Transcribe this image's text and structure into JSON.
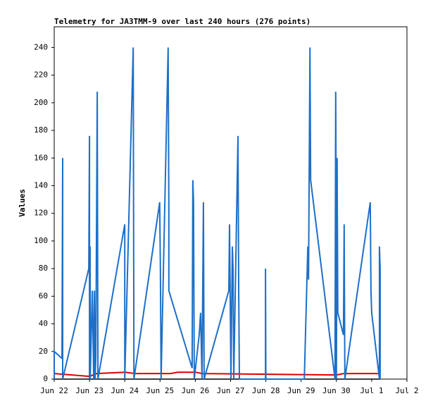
{
  "chart_data": {
    "type": "line",
    "title": "Telemetry for JA3TMM-9 over last 240 hours (276 points)",
    "y_label": "Values",
    "ylim": [
      0,
      255
    ],
    "yticks": [
      0,
      20,
      40,
      60,
      80,
      100,
      120,
      140,
      160,
      180,
      200,
      220,
      240
    ],
    "xlim": [
      0,
      10
    ],
    "xticks": [
      {
        "value": 0,
        "label": "Jun 22"
      },
      {
        "value": 1,
        "label": "Jun 23"
      },
      {
        "value": 2,
        "label": "Jun 24"
      },
      {
        "value": 3,
        "label": "Jun 25"
      },
      {
        "value": 4,
        "label": "Jun 26"
      },
      {
        "value": 5,
        "label": "Jun 27"
      },
      {
        "value": 6,
        "label": "Jun 28"
      },
      {
        "value": 7,
        "label": "Jun 29"
      },
      {
        "value": 8,
        "label": "Jun 30"
      },
      {
        "value": 9,
        "label": "Jul 1"
      },
      {
        "value": 10,
        "label": "Jul 2"
      }
    ],
    "grid": false,
    "series": [
      {
        "color": "#000000",
        "x": [
          0,
          9.24
        ],
        "values": [
          0,
          0
        ]
      },
      {
        "color": "#e00000",
        "x": [
          0,
          0.5,
          1,
          1.2,
          2,
          2.3,
          3,
          3.3,
          3.5,
          4,
          4.2,
          8,
          8.2,
          9.24
        ],
        "values": [
          4,
          3,
          2,
          4,
          5,
          4,
          4,
          4,
          5,
          5,
          4,
          3,
          4,
          4
        ]
      },
      {
        "color": "#1e6fc8",
        "x": [
          0,
          0,
          0.22,
          0.24,
          0.24,
          0.98,
          1.0,
          1.0,
          1.02,
          1.02,
          1.08,
          1.12,
          1.14,
          1.16,
          1.18,
          1.22,
          1.24,
          2.0,
          2.0,
          2.24,
          2.26,
          2.99,
          3.01,
          3.03,
          3.23,
          3.25,
          3.25,
          3.91,
          3.93,
          3.95,
          3.97,
          4.11,
          4.15,
          4.19,
          4.23,
          4.25,
          4.95,
          4.97,
          5.01,
          5.05,
          5.07,
          5.09,
          5.21,
          5.23,
          5.25,
          5.99,
          5.99,
          6.0,
          7.09,
          7.19,
          7.21,
          7.25,
          7.27,
          7.96,
          7.98,
          8.0,
          8.0,
          8.02,
          8.04,
          8.2,
          8.22,
          8.24,
          8.96,
          8.98,
          9.0,
          9.22,
          9.22,
          9.24,
          9.24
        ],
        "values": [
          0,
          20,
          15,
          160,
          0,
          80,
          176,
          0,
          96,
          0,
          64,
          0,
          64,
          0,
          16,
          208,
          0,
          112,
          0,
          240,
          0,
          128,
          80,
          0,
          240,
          120,
          64,
          8,
          144,
          128,
          0,
          32,
          48,
          0,
          128,
          0,
          64,
          112,
          0,
          96,
          80,
          0,
          176,
          64,
          0,
          0,
          80,
          0,
          0,
          96,
          72,
          240,
          144,
          0,
          208,
          80,
          0,
          160,
          48,
          32,
          112,
          0,
          128,
          64,
          48,
          0,
          96,
          80,
          0
        ]
      }
    ]
  }
}
